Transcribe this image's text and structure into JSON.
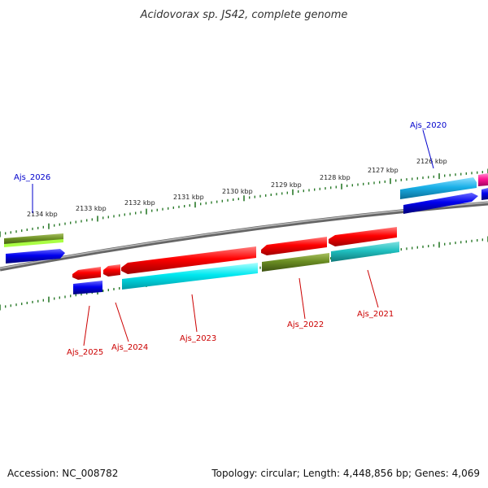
{
  "title": "Acidovorax sp. JS42, complete genome",
  "footer": {
    "accession": "Accession: NC_008782",
    "summary": "Topology: circular; Length: 4,448,856 bp; Genes: 4,069"
  },
  "scale": {
    "unit": "kbp",
    "ticks": [
      "2134 kbp",
      "2133 kbp",
      "2132 kbp",
      "2131 kbp",
      "2130 kbp",
      "2129 kbp",
      "2128 kbp",
      "2127 kbp",
      "2126 kbp"
    ]
  },
  "genes": [
    {
      "label": "Ajs_2020",
      "color": "#0000cc"
    },
    {
      "label": "Ajs_2021",
      "color": "#cc0000"
    },
    {
      "label": "Ajs_2022",
      "color": "#cc0000"
    },
    {
      "label": "Ajs_2023",
      "color": "#cc0000"
    },
    {
      "label": "Ajs_2024",
      "color": "#cc0000"
    },
    {
      "label": "Ajs_2025",
      "color": "#cc0000"
    },
    {
      "label": "Ajs_2026",
      "color": "#0000cc"
    }
  ],
  "colors": {
    "red": "#ff0000",
    "blue": "#0000ee",
    "cyan": "#00e5f0",
    "teal": "#20c0c0",
    "olive": "#6b8e23",
    "lime": "#aaff44",
    "sky": "#1ab0e8",
    "pink": "#ff1493",
    "ring": "#888888",
    "tick": "#2a7a2a"
  }
}
